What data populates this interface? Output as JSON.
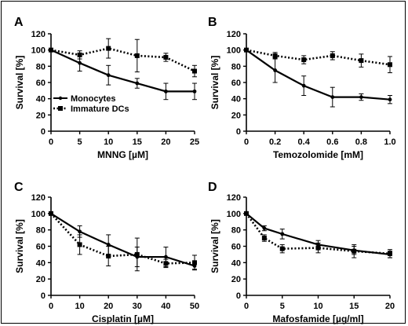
{
  "chart_data": [
    {
      "type": "line",
      "panel_label": "A",
      "xlabel": "MNNG [µM]",
      "ylabel": "Survival [%]",
      "xlim": [
        0,
        25
      ],
      "ylim": [
        0,
        120
      ],
      "xticks": [
        0,
        5,
        10,
        15,
        20,
        25
      ],
      "xtick_labels": [
        "0",
        "5",
        "10",
        "15",
        "20",
        "25"
      ],
      "yticks": [
        0,
        20,
        40,
        60,
        80,
        100,
        120
      ],
      "ytick_labels": [
        "0",
        "20",
        "40",
        "60",
        "80",
        "100",
        "120"
      ],
      "series": [
        {
          "name": "Monocytes",
          "style": "solid",
          "marker": "circle",
          "x": [
            0,
            5,
            10,
            15,
            20,
            25
          ],
          "y": [
            100,
            84,
            69,
            59,
            49,
            49
          ],
          "err": [
            0,
            10,
            12,
            6,
            10,
            10
          ]
        },
        {
          "name": "Immature DCs",
          "style": "dotted",
          "marker": "square",
          "x": [
            0,
            5,
            10,
            15,
            20,
            25
          ],
          "y": [
            100,
            94,
            102,
            93,
            91,
            74
          ],
          "err": [
            0,
            5,
            12,
            20,
            5,
            7
          ]
        }
      ],
      "legend": {
        "position": "bottom-left",
        "entries": [
          "Monocytes",
          "Immature DCs"
        ]
      }
    },
    {
      "type": "line",
      "panel_label": "B",
      "xlabel": "Temozolomide [mM]",
      "ylabel": "Survival [%]",
      "xlim": [
        0,
        1.0
      ],
      "ylim": [
        0,
        120
      ],
      "xticks": [
        0,
        0.2,
        0.4,
        0.6,
        0.8,
        1.0
      ],
      "xtick_labels": [
        "0",
        "0.2",
        "0.4",
        "0.6",
        "0.8",
        "1.0"
      ],
      "yticks": [
        0,
        20,
        40,
        60,
        80,
        100,
        120
      ],
      "ytick_labels": [
        "0",
        "20",
        "40",
        "60",
        "80",
        "100",
        "120"
      ],
      "series": [
        {
          "name": "Monocytes",
          "style": "solid",
          "marker": "circle",
          "x": [
            0,
            0.2,
            0.4,
            0.6,
            0.8,
            1.0
          ],
          "y": [
            100,
            75,
            56,
            42,
            42,
            39
          ],
          "err": [
            0,
            15,
            12,
            12,
            4,
            5
          ]
        },
        {
          "name": "Immature DCs",
          "style": "dotted",
          "marker": "square",
          "x": [
            0,
            0.2,
            0.4,
            0.6,
            0.8,
            1.0
          ],
          "y": [
            100,
            93,
            88,
            93,
            87,
            82
          ],
          "err": [
            0,
            4,
            5,
            5,
            8,
            10
          ]
        }
      ]
    },
    {
      "type": "line",
      "panel_label": "C",
      "xlabel": "Cisplatin [µM]",
      "ylabel": "Survival [%]",
      "xlim": [
        0,
        50
      ],
      "ylim": [
        0,
        120
      ],
      "xticks": [
        0,
        10,
        20,
        30,
        40,
        50
      ],
      "xtick_labels": [
        "0",
        "10",
        "20",
        "30",
        "40",
        "50"
      ],
      "yticks": [
        0,
        20,
        40,
        60,
        80,
        100,
        120
      ],
      "ytick_labels": [
        "0",
        "20",
        "40",
        "60",
        "80",
        "100",
        "120"
      ],
      "series": [
        {
          "name": "Monocytes",
          "style": "solid",
          "marker": "circle",
          "x": [
            0,
            10,
            20,
            30,
            40,
            50
          ],
          "y": [
            100,
            78,
            62,
            47,
            47,
            36
          ],
          "err": [
            0,
            7,
            12,
            12,
            12,
            4
          ]
        },
        {
          "name": "Immature DCs",
          "style": "dotted",
          "marker": "square",
          "x": [
            0,
            10,
            20,
            30,
            40,
            50
          ],
          "y": [
            100,
            62,
            48,
            50,
            39,
            40
          ],
          "err": [
            0,
            12,
            12,
            20,
            5,
            9
          ]
        }
      ]
    },
    {
      "type": "line",
      "panel_label": "D",
      "xlabel": "Mafosfamide [µg/ml]",
      "ylabel": "Survival [%]",
      "xlim": [
        0,
        20
      ],
      "ylim": [
        0,
        120
      ],
      "xticks": [
        0,
        5,
        10,
        15,
        20
      ],
      "xtick_labels": [
        "0",
        "5",
        "10",
        "15",
        "20"
      ],
      "yticks": [
        0,
        20,
        40,
        60,
        80,
        100,
        120
      ],
      "ytick_labels": [
        "0",
        "20",
        "40",
        "60",
        "80",
        "100",
        "120"
      ],
      "series": [
        {
          "name": "Monocytes",
          "style": "solid",
          "marker": "circle",
          "x": [
            0,
            2.5,
            5,
            10,
            15,
            20
          ],
          "y": [
            100,
            82,
            75,
            62,
            55,
            50
          ],
          "err": [
            0,
            3,
            6,
            5,
            5,
            4
          ]
        },
        {
          "name": "Immature DCs",
          "style": "dotted",
          "marker": "square",
          "x": [
            0,
            2.5,
            5,
            10,
            15,
            20
          ],
          "y": [
            100,
            70,
            57,
            58,
            54,
            51
          ],
          "err": [
            0,
            4,
            5,
            6,
            8,
            5
          ]
        }
      ]
    }
  ]
}
